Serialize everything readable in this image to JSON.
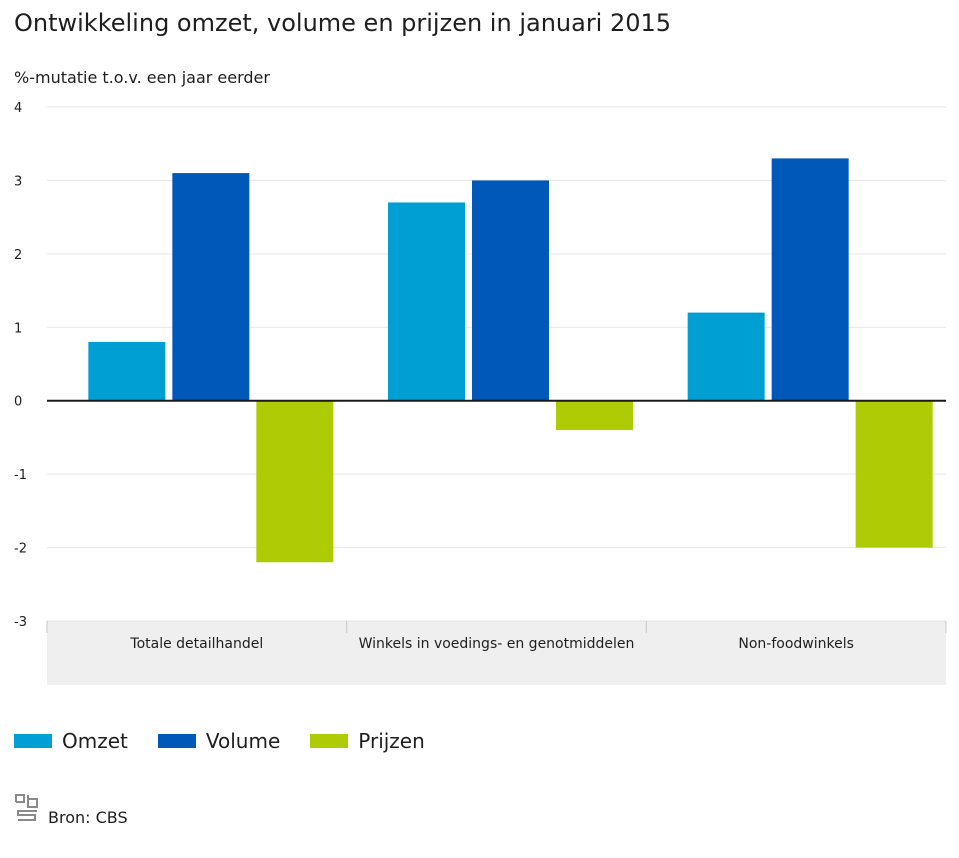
{
  "header": {
    "title": "Ontwikkeling omzet, volume en prijzen in januari 2015",
    "subtitle": "%-mutatie t.o.v. een jaar eerder"
  },
  "colors": {
    "omzet": "#009fd3",
    "volume": "#0058b8",
    "prijzen": "#afcb05",
    "grid": "#e6e6e6",
    "zero": "#1a1a1a",
    "category_band": "#efefef"
  },
  "chart_data": {
    "type": "bar",
    "title": "Ontwikkeling omzet, volume en prijzen in januari 2015",
    "ylabel": "%-mutatie t.o.v. een jaar eerder",
    "xlabel": "",
    "ylim": [
      -3,
      4
    ],
    "yticks": [
      4,
      3,
      2,
      1,
      0,
      -1,
      -2,
      -3
    ],
    "grid": true,
    "legend_position": "bottom-left",
    "categories": [
      "Totale detailhandel",
      "Winkels in voedings- en genotmiddelen",
      "Non-foodwinkels"
    ],
    "series": [
      {
        "name": "Omzet",
        "color_key": "omzet",
        "values": [
          0.8,
          2.7,
          1.2
        ]
      },
      {
        "name": "Volume",
        "color_key": "volume",
        "values": [
          3.1,
          3.0,
          3.3
        ]
      },
      {
        "name": "Prijzen",
        "color_key": "prijzen",
        "values": [
          -2.2,
          -0.4,
          -2.0
        ]
      }
    ]
  },
  "legend": {
    "items": [
      {
        "label": "Omzet",
        "color": "#009fd3"
      },
      {
        "label": "Volume",
        "color": "#0058b8"
      },
      {
        "label": "Prijzen",
        "color": "#afcb05"
      }
    ]
  },
  "footer": {
    "source": "Bron: CBS",
    "logo_icon": "cbs-logo-icon"
  }
}
